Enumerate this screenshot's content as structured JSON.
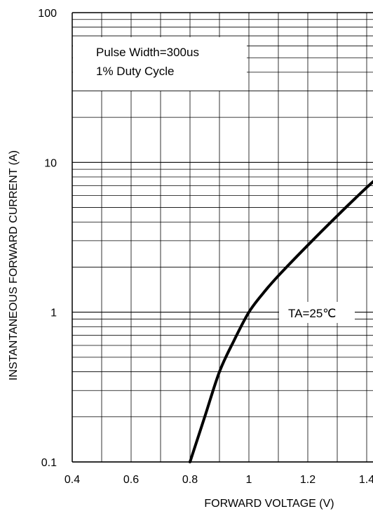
{
  "chart_data": {
    "type": "line",
    "xlabel": "FORWARD VOLTAGE (V)",
    "ylabel": "INSTANTANEOUS FORWARD CURRENT (A)",
    "xlim": [
      0.4,
      1.45
    ],
    "ylim": [
      0.1,
      100
    ],
    "yscale": "log",
    "grid": true,
    "x_ticks": [
      0.4,
      0.6,
      0.8,
      1.0,
      1.2,
      1.4
    ],
    "x_tick_labels": [
      "0.4",
      "0.6",
      "0.8",
      "1",
      "1.2",
      "1.4"
    ],
    "y_ticks": [
      0.1,
      1,
      10,
      100
    ],
    "y_tick_labels": [
      "0.1",
      "1",
      "10",
      "100"
    ],
    "annotations": {
      "conditions_line1": "Pulse Width=300us",
      "conditions_line2": "1% Duty Cycle",
      "curve_label": "TA=25℃"
    },
    "series": [
      {
        "x": [
          0.8,
          0.85,
          0.9,
          0.95,
          1.0,
          1.05,
          1.1,
          1.2,
          1.3,
          1.4,
          1.45
        ],
        "y": [
          0.1,
          0.2,
          0.4,
          0.65,
          1.0,
          1.35,
          1.75,
          2.8,
          4.4,
          6.8,
          8.3
        ]
      }
    ]
  }
}
